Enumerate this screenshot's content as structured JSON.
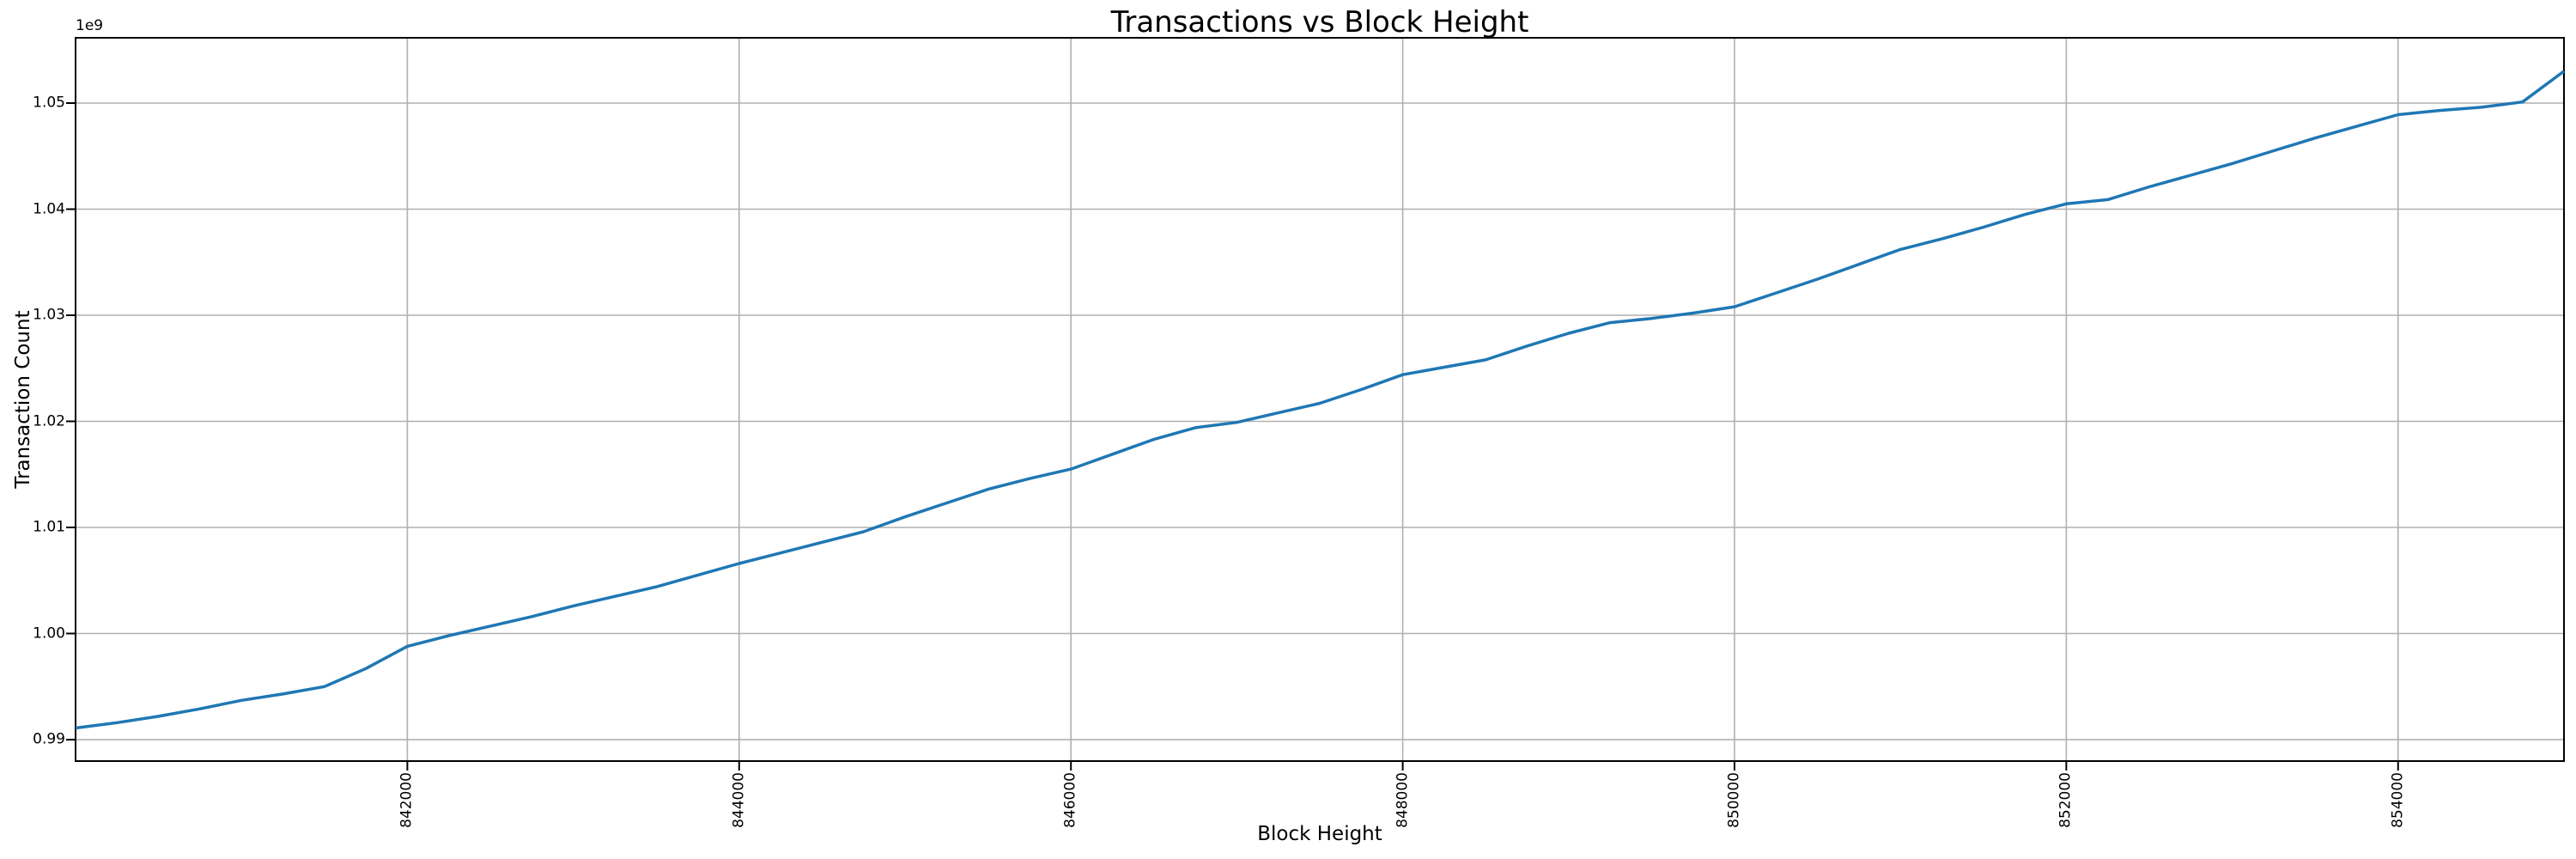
{
  "chart_data": {
    "type": "line",
    "title": "Transactions vs Block Height",
    "xlabel": "Block Height",
    "ylabel": "Transaction Count",
    "y_offset_label": "1e9",
    "grid": true,
    "legend": null,
    "line_color": "#1f77b4",
    "grid_color": "#b0b0b0",
    "spine_color": "#000000",
    "background_color": "#ffffff",
    "xlim": [
      840000,
      855000
    ],
    "ylim": [
      987980000,
      1056150000
    ],
    "x_ticks": [
      842000,
      844000,
      846000,
      848000,
      850000,
      852000,
      854000
    ],
    "x_tick_labels": [
      "842000",
      "844000",
      "846000",
      "848000",
      "850000",
      "852000",
      "854000"
    ],
    "y_ticks": [
      990000000,
      1000000000,
      1010000000,
      1020000000,
      1030000000,
      1040000000,
      1050000000
    ],
    "y_tick_labels": [
      "0.99",
      "1.00",
      "1.01",
      "1.02",
      "1.03",
      "1.04",
      "1.05"
    ],
    "x": [
      840000,
      840250,
      840500,
      840750,
      841000,
      841250,
      841500,
      841750,
      842000,
      842250,
      842500,
      842750,
      843000,
      843250,
      843500,
      843750,
      844000,
      844250,
      844500,
      844750,
      845000,
      845250,
      845500,
      845750,
      846000,
      846250,
      846500,
      846750,
      847000,
      847250,
      847500,
      847750,
      848000,
      848250,
      848500,
      848750,
      849000,
      849250,
      849500,
      849750,
      850000,
      850250,
      850500,
      850750,
      851000,
      851250,
      851500,
      851750,
      852000,
      852250,
      852500,
      852750,
      853000,
      853250,
      853500,
      853750,
      854000,
      854250,
      854500,
      854750,
      855000
    ],
    "y": [
      991100000,
      991600000,
      992200000,
      992900000,
      993700000,
      994300000,
      995000000,
      996700000,
      998800000,
      999800000,
      1000700000,
      1001600000,
      1002600000,
      1003500000,
      1004400000,
      1005500000,
      1006600000,
      1007600000,
      1008600000,
      1009600000,
      1011000000,
      1012300000,
      1013600000,
      1014600000,
      1015500000,
      1016900000,
      1018300000,
      1019400000,
      1019900000,
      1020800000,
      1021700000,
      1023000000,
      1024400000,
      1025100000,
      1025800000,
      1027100000,
      1028300000,
      1029300000,
      1029700000,
      1030200000,
      1030800000,
      1032100000,
      1033400000,
      1034800000,
      1036200000,
      1037200000,
      1038300000,
      1039500000,
      1040500000,
      1040900000,
      1042100000,
      1043200000,
      1044300000,
      1045500000,
      1046700000,
      1047800000,
      1048900000,
      1049300000,
      1049600000,
      1050100000,
      1053000000
    ]
  }
}
